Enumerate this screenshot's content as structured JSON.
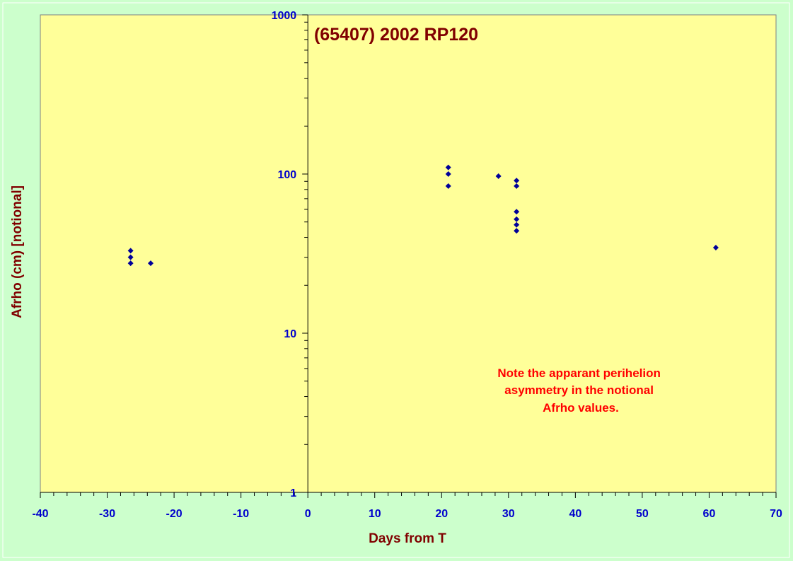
{
  "chart_data": {
    "type": "scatter",
    "title": "(65407) 2002 RP120",
    "xlabel": "Days from T",
    "ylabel": "Afrho (cm) [notional]",
    "xlim": [
      -40,
      70
    ],
    "ylim": [
      1,
      1000
    ],
    "yscale": "log",
    "x_ticks": [
      -40,
      -30,
      -20,
      -10,
      0,
      10,
      20,
      30,
      40,
      50,
      60,
      70
    ],
    "y_ticks": [
      1,
      10,
      100,
      1000
    ],
    "grid": false,
    "legend": "none",
    "annotation": [
      "Note the apparant perihelion",
      "asymmetry in the notional",
      "Afrho values."
    ],
    "colors": {
      "outer_background": "#ccffcc",
      "plot_background": "#ffff99",
      "points": "#000099",
      "tick_labels": "#0000cc",
      "title": "#800000",
      "axis_labels": "#800000",
      "annotation": "#ff0000"
    },
    "series": [
      {
        "points": [
          {
            "x": -26.5,
            "y": 33
          },
          {
            "x": -26.5,
            "y": 30
          },
          {
            "x": -26.5,
            "y": 27.5
          },
          {
            "x": -23.5,
            "y": 27.5
          },
          {
            "x": 21.0,
            "y": 110
          },
          {
            "x": 21.0,
            "y": 100
          },
          {
            "x": 21.0,
            "y": 84
          },
          {
            "x": 28.5,
            "y": 97
          },
          {
            "x": 31.2,
            "y": 91
          },
          {
            "x": 31.2,
            "y": 84
          },
          {
            "x": 31.2,
            "y": 58
          },
          {
            "x": 31.2,
            "y": 52
          },
          {
            "x": 31.2,
            "y": 48
          },
          {
            "x": 31.2,
            "y": 44
          },
          {
            "x": 61.0,
            "y": 34.5
          }
        ]
      }
    ]
  }
}
